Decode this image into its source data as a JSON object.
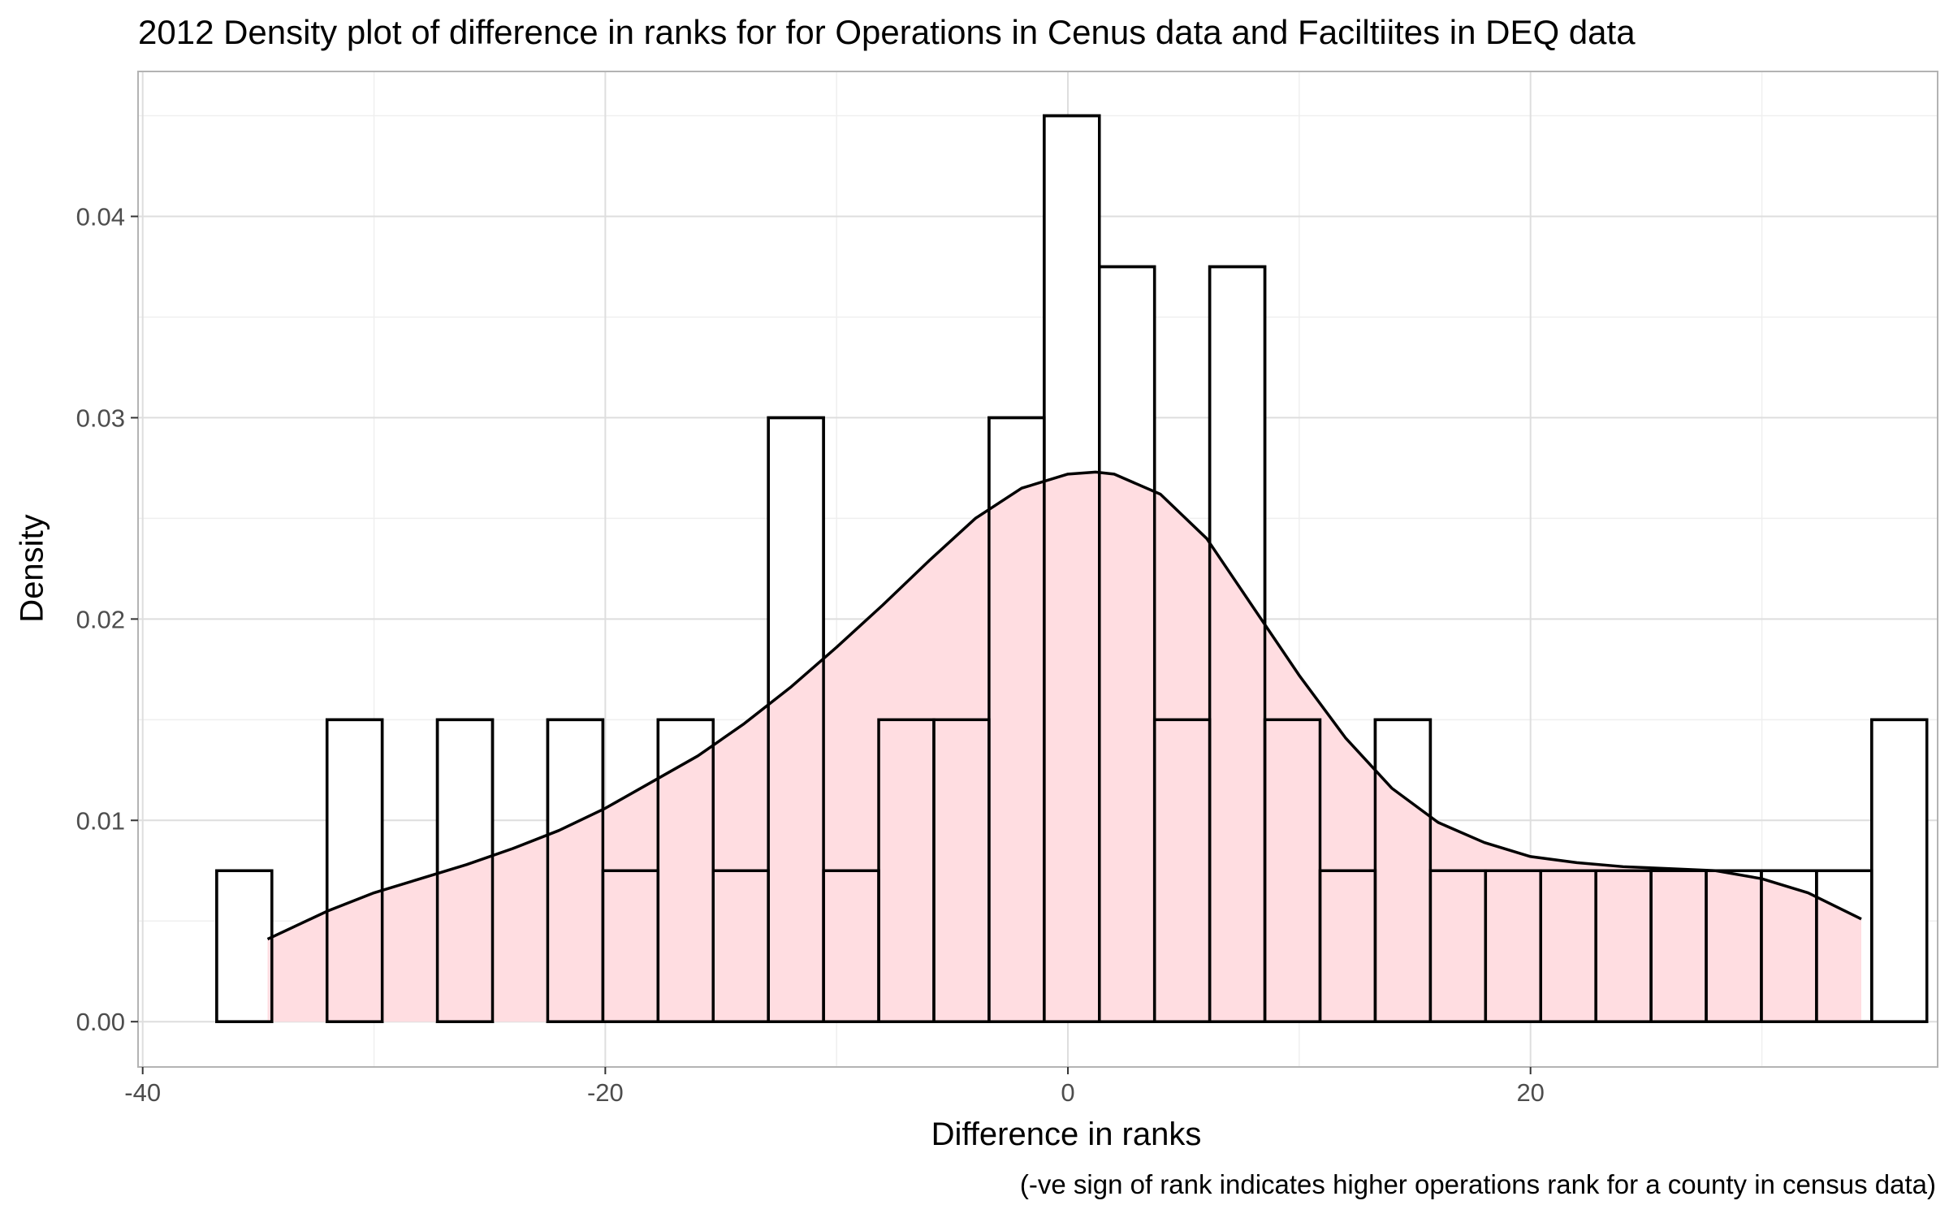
{
  "chart_data": {
    "type": "bar",
    "title": "2012 Density plot of difference in ranks for for Operations in Cenus data and Faciltiites in DEQ data",
    "xlabel": "Difference in ranks",
    "ylabel": "Density",
    "caption": "(-ve sign of rank indicates higher operations rank for a county in census data)",
    "xlim": [
      -40.2,
      37.6
    ],
    "ylim": [
      -0.00225,
      0.0472
    ],
    "x_ticks": [
      -40,
      -20,
      0,
      20
    ],
    "x_tick_labels": [
      "-40",
      "-20",
      "0",
      "20"
    ],
    "y_ticks": [
      0.0,
      0.01,
      0.02,
      0.03,
      0.04
    ],
    "y_tick_labels": [
      "0.00",
      "0.01",
      "0.02",
      "0.03",
      "0.04"
    ],
    "grid": true,
    "legend": "none",
    "histogram": {
      "bin_width": 2.385,
      "first_bin_left": -36.8,
      "densities": [
        0.0075,
        0,
        0.015,
        0,
        0.015,
        0,
        0.015,
        0.0075,
        0.015,
        0.0075,
        0.03,
        0.0075,
        0.015,
        0.015,
        0.03,
        0.045,
        0.0375,
        0.015,
        0.0375,
        0.015,
        0.0075,
        0.015,
        0.0075,
        0.0075,
        0.0075,
        0.0075,
        0.0075,
        0.0075,
        0.0075,
        0.0075,
        0.015
      ],
      "bar_fill": "#ffffff",
      "bar_stroke": "#000000"
    },
    "density_curve": {
      "x": [
        -34.6,
        -32,
        -30,
        -28,
        -26,
        -24,
        -22,
        -20,
        -18,
        -16,
        -14,
        -12,
        -10,
        -8,
        -6,
        -4,
        -2,
        0,
        1.2,
        2,
        4,
        6,
        8,
        10,
        12,
        14,
        16,
        18,
        20,
        22,
        24,
        26,
        28,
        30,
        32,
        34.3
      ],
      "y": [
        0.0041,
        0.0055,
        0.0064,
        0.0071,
        0.0078,
        0.0086,
        0.0095,
        0.0106,
        0.0119,
        0.0132,
        0.0148,
        0.0166,
        0.0186,
        0.0207,
        0.0229,
        0.025,
        0.0265,
        0.0272,
        0.0273,
        0.0272,
        0.0262,
        0.024,
        0.0206,
        0.0172,
        0.0141,
        0.0116,
        0.0099,
        0.0089,
        0.0082,
        0.0079,
        0.0077,
        0.0076,
        0.0075,
        0.0071,
        0.0064,
        0.0051
      ],
      "fill": "#ffdde1",
      "stroke": "#000000"
    },
    "panel_border": "#b3b3b3",
    "grid_major_color": "#dedede",
    "grid_minor_color": "#efefef"
  }
}
